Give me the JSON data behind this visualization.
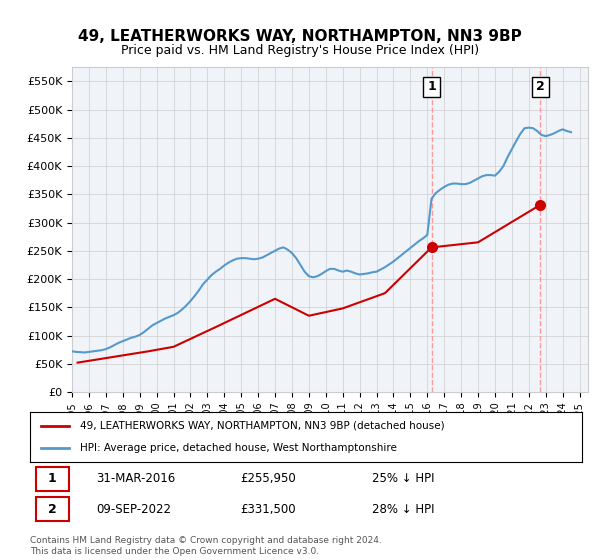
{
  "title": "49, LEATHERWORKS WAY, NORTHAMPTON, NN3 9BP",
  "subtitle": "Price paid vs. HM Land Registry's House Price Index (HPI)",
  "ylabel_ticks": [
    "£0",
    "£50K",
    "£100K",
    "£150K",
    "£200K",
    "£250K",
    "£300K",
    "£350K",
    "£400K",
    "£450K",
    "£500K",
    "£550K"
  ],
  "ylim": [
    0,
    575000
  ],
  "xlim_start": 1995.0,
  "xlim_end": 2025.5,
  "legend_line1": "49, LEATHERWORKS WAY, NORTHAMPTON, NN3 9BP (detached house)",
  "legend_line2": "HPI: Average price, detached house, West Northamptonshire",
  "point1_label": "1",
  "point1_date": "31-MAR-2016",
  "point1_price": "£255,950",
  "point1_pct": "25% ↓ HPI",
  "point1_x": 2016.25,
  "point1_y": 255950,
  "point2_label": "2",
  "point2_date": "09-SEP-2022",
  "point2_price": "£331,500",
  "point2_pct": "28% ↓ HPI",
  "point2_x": 2022.69,
  "point2_y": 331500,
  "red_color": "#cc0000",
  "blue_color": "#5599cc",
  "dashed_color": "#ff9999",
  "background_color": "#f0f4f8",
  "grid_color": "#cccccc",
  "footnote": "Contains HM Land Registry data © Crown copyright and database right 2024.\nThis data is licensed under the Open Government Licence v3.0.",
  "hpi_data_x": [
    1995.0,
    1995.25,
    1995.5,
    1995.75,
    1996.0,
    1996.25,
    1996.5,
    1996.75,
    1997.0,
    1997.25,
    1997.5,
    1997.75,
    1998.0,
    1998.25,
    1998.5,
    1998.75,
    1999.0,
    1999.25,
    1999.5,
    1999.75,
    2000.0,
    2000.25,
    2000.5,
    2000.75,
    2001.0,
    2001.25,
    2001.5,
    2001.75,
    2002.0,
    2002.25,
    2002.5,
    2002.75,
    2003.0,
    2003.25,
    2003.5,
    2003.75,
    2004.0,
    2004.25,
    2004.5,
    2004.75,
    2005.0,
    2005.25,
    2005.5,
    2005.75,
    2006.0,
    2006.25,
    2006.5,
    2006.75,
    2007.0,
    2007.25,
    2007.5,
    2007.75,
    2008.0,
    2008.25,
    2008.5,
    2008.75,
    2009.0,
    2009.25,
    2009.5,
    2009.75,
    2010.0,
    2010.25,
    2010.5,
    2010.75,
    2011.0,
    2011.25,
    2011.5,
    2011.75,
    2012.0,
    2012.25,
    2012.5,
    2012.75,
    2013.0,
    2013.25,
    2013.5,
    2013.75,
    2014.0,
    2014.25,
    2014.5,
    2014.75,
    2015.0,
    2015.25,
    2015.5,
    2015.75,
    2016.0,
    2016.25,
    2016.5,
    2016.75,
    2017.0,
    2017.25,
    2017.5,
    2017.75,
    2018.0,
    2018.25,
    2018.5,
    2018.75,
    2019.0,
    2019.25,
    2019.5,
    2019.75,
    2020.0,
    2020.25,
    2020.5,
    2020.75,
    2021.0,
    2021.25,
    2021.5,
    2021.75,
    2022.0,
    2022.25,
    2022.5,
    2022.75,
    2023.0,
    2023.25,
    2023.5,
    2023.75,
    2024.0,
    2024.25,
    2024.5
  ],
  "hpi_data_y": [
    72000,
    71000,
    70500,
    70000,
    71000,
    72000,
    73000,
    74000,
    76000,
    79000,
    83000,
    87000,
    90000,
    93000,
    96000,
    98000,
    101000,
    106000,
    112000,
    118000,
    122000,
    126000,
    130000,
    133000,
    136000,
    140000,
    146000,
    153000,
    161000,
    170000,
    180000,
    191000,
    199000,
    207000,
    213000,
    218000,
    224000,
    229000,
    233000,
    236000,
    237000,
    237000,
    236000,
    235000,
    236000,
    238000,
    242000,
    246000,
    250000,
    254000,
    256000,
    252000,
    246000,
    237000,
    225000,
    213000,
    205000,
    203000,
    205000,
    209000,
    214000,
    218000,
    218000,
    215000,
    213000,
    215000,
    213000,
    210000,
    208000,
    209000,
    210000,
    212000,
    213000,
    217000,
    221000,
    226000,
    231000,
    237000,
    243000,
    249000,
    255000,
    261000,
    267000,
    272000,
    278000,
    342000,
    352000,
    358000,
    363000,
    367000,
    369000,
    369000,
    368000,
    368000,
    370000,
    374000,
    378000,
    382000,
    384000,
    384000,
    383000,
    390000,
    400000,
    416000,
    430000,
    444000,
    457000,
    467000,
    468000,
    467000,
    462000,
    455000,
    453000,
    455000,
    458000,
    462000,
    465000,
    462000,
    460000
  ],
  "price_paid_x": [
    1995.33,
    1997.0,
    1999.5,
    2001.0,
    2003.5,
    2007.0,
    2009.0,
    2011.0,
    2013.5,
    2016.25,
    2019.0,
    2022.69
  ],
  "price_paid_y": [
    52000,
    60000,
    72000,
    80000,
    115000,
    165000,
    135000,
    148000,
    175000,
    255950,
    265000,
    331500
  ]
}
